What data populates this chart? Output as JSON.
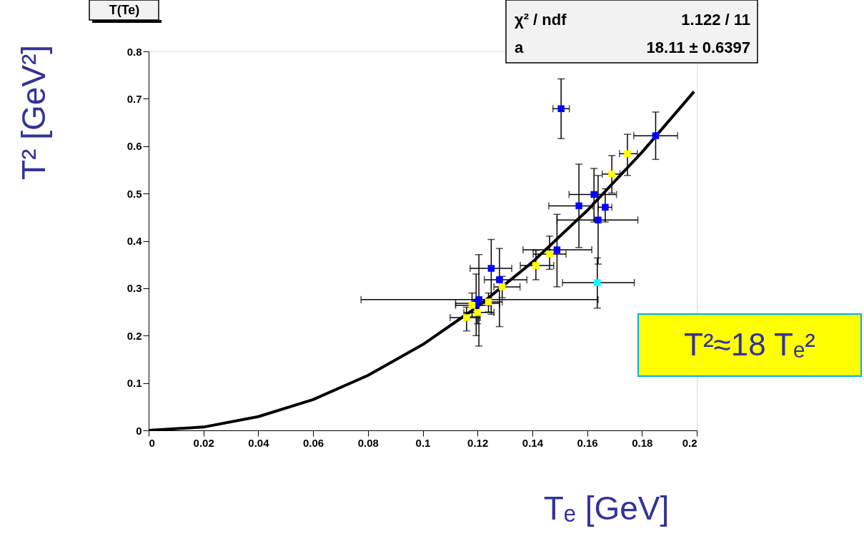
{
  "chart_data": {
    "type": "scatter",
    "title": "T(Te)",
    "xlabel": "Tₑ [GeV]",
    "ylabel": "T² [GeV²]",
    "xlim": [
      0,
      0.2
    ],
    "ylim": [
      0,
      0.8
    ],
    "xticks": [
      0,
      0.02,
      0.04,
      0.06,
      0.08,
      0.1,
      0.12,
      0.14,
      0.16,
      0.18,
      0.2
    ],
    "yticks": [
      0,
      0.1,
      0.2,
      0.3,
      0.4,
      0.5,
      0.6,
      0.7,
      0.8
    ],
    "grid": false,
    "marker": "square",
    "line_style": "solid",
    "annotations": [
      "χ² / ndf",
      "1.122 / 11",
      "a",
      "18.11 ± 0.6397",
      "T²≈18 Tₑ²"
    ],
    "series": [
      {
        "color": "#0000ff",
        "x": [
          0.1505,
          0.185,
          0.1625,
          0.157,
          0.1666,
          0.164,
          0.149,
          0.125,
          0.128,
          0.1205,
          0.1195
        ],
        "values": [
          0.679,
          0.622,
          0.498,
          0.474,
          0.471,
          0.444,
          0.381,
          0.342,
          0.318,
          0.276,
          0.268
        ],
        "errors": [
          [
            0.616,
            0.742
          ],
          [
            0.572,
            0.672
          ],
          [
            0.44,
            0.553
          ],
          [
            0.386,
            0.562
          ],
          [
            0.44,
            0.51
          ],
          [
            0.351,
            0.538
          ],
          [
            0.303,
            0.456
          ],
          [
            0.245,
            0.403
          ],
          [
            0.219,
            0.384
          ],
          [
            0.178,
            0.371
          ],
          [
            0.2,
            0.33
          ]
        ],
        "xerrors": [
          [
            0.1475,
            0.1535
          ],
          [
            0.177,
            0.193
          ],
          [
            0.1534,
            0.1707
          ],
          [
            0.146,
            0.162
          ],
          [
            0.164,
            0.169
          ],
          [
            0.149,
            0.1785
          ],
          [
            0.1366,
            0.1617
          ],
          [
            0.1173,
            0.1325
          ],
          [
            0.1225,
            0.138
          ],
          [
            0.0775,
            0.164
          ],
          [
            0.112,
            0.128
          ]
        ]
      },
      {
        "color": "#00ffff",
        "x": [
          0.1637
        ],
        "values": [
          0.312
        ],
        "errors": [
          [
            0.258,
            0.364
          ]
        ],
        "xerrors": [
          [
            0.151,
            0.1772
          ]
        ]
      },
      {
        "color": "#ffff00",
        "x": [
          0.1747,
          0.169,
          0.1463,
          0.1413,
          0.129,
          0.124,
          0.118,
          0.12,
          0.116
        ],
        "values": [
          0.584,
          0.541,
          0.372,
          0.348,
          0.303,
          0.271,
          0.264,
          0.249,
          0.238
        ],
        "errors": [
          [
            0.538,
            0.625
          ],
          [
            0.501,
            0.58
          ],
          [
            0.34,
            0.41
          ],
          [
            0.318,
            0.38
          ],
          [
            0.28,
            0.325
          ],
          [
            0.25,
            0.29
          ],
          [
            0.24,
            0.29
          ],
          [
            0.225,
            0.27
          ],
          [
            0.21,
            0.26
          ]
        ],
        "xerrors": [
          [
            0.1718,
            0.1783
          ],
          [
            0.1655,
            0.172
          ],
          [
            0.1403,
            0.1523
          ],
          [
            0.1356,
            0.1478
          ],
          [
            0.126,
            0.1355
          ],
          [
            0.119,
            0.129
          ],
          [
            0.112,
            0.125
          ],
          [
            0.115,
            0.126
          ],
          [
            0.11,
            0.121
          ]
        ]
      },
      {
        "type": "line",
        "marker": "none",
        "color": "#000000",
        "x": [
          0,
          0.02,
          0.04,
          0.06,
          0.08,
          0.1,
          0.12,
          0.14,
          0.16,
          0.18,
          0.199
        ],
        "values": [
          0,
          0.007,
          0.029,
          0.065,
          0.116,
          0.181,
          0.261,
          0.355,
          0.464,
          0.587,
          0.715
        ]
      }
    ]
  }
}
